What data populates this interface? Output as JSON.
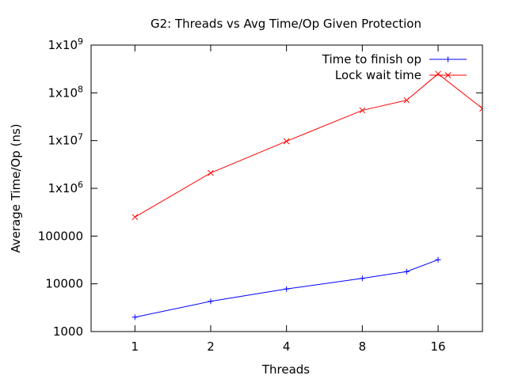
{
  "chart_data": {
    "type": "line",
    "title": "G2: Threads vs Avg Time/Op Given Protection",
    "xlabel": "Threads",
    "ylabel": "Average Time/Op (ns)",
    "x_scale": "log2",
    "y_scale": "log10",
    "xlim": [
      0.67,
      24
    ],
    "ylim": [
      1000,
      1000000000
    ],
    "x_ticks": [
      1,
      2,
      4,
      8,
      16
    ],
    "x_tick_labels": [
      "1",
      "2",
      "4",
      "8",
      "16"
    ],
    "y_ticks": [
      1000,
      10000,
      100000,
      1000000,
      10000000,
      100000000,
      1000000000
    ],
    "y_tick_labels": [
      "1000",
      "10000",
      "100000",
      "1x10^6",
      "1x10^7",
      "1x10^8",
      "1x10^9"
    ],
    "grid": false,
    "legend_position": "top-right",
    "series": [
      {
        "name": "Time to finish op",
        "color": "#0000ff",
        "marker": "plus",
        "x": [
          1,
          2,
          4,
          8,
          12,
          16
        ],
        "y": [
          2000,
          4300,
          7800,
          13000,
          18000,
          32000
        ]
      },
      {
        "name": "Lock wait time",
        "color": "#ff0000",
        "marker": "cross",
        "x": [
          1,
          2,
          4,
          8,
          12,
          16,
          24
        ],
        "y": [
          250000,
          2100000,
          9700000,
          43000000,
          70000000,
          250000000,
          47000000
        ]
      }
    ]
  }
}
